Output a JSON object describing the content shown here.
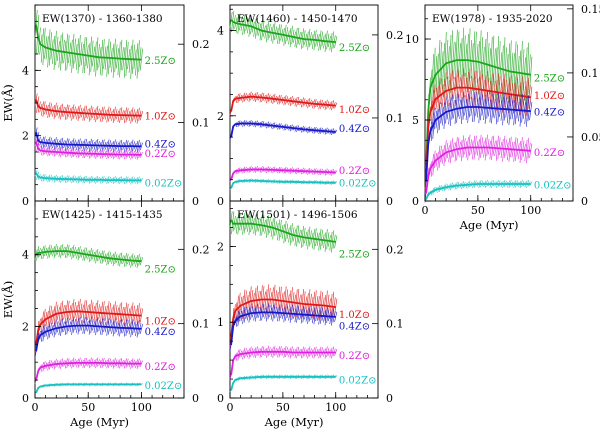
{
  "colors": {
    "2.5Z": "#1aa51a",
    "1.0Z": "#e01818",
    "0.4Z": "#1818c8",
    "0.2Z": "#e020e0",
    "0.02Z": "#18c0c0"
  },
  "axis_labels": {
    "ylabel": "EW(Å)",
    "xlabel": "Age (Myr)"
  },
  "chart_data": [
    {
      "id": "p1370",
      "type": "line",
      "title": "EW(1370) - 1360-1380",
      "xlim": [
        0,
        140
      ],
      "ylim": [
        0,
        6
      ],
      "right_ylim": [
        0,
        0.25
      ],
      "x_ticks": [
        0,
        50,
        100
      ],
      "y_ticks": [
        0,
        2,
        4
      ],
      "right_ticks": [
        0,
        0.1,
        0.2
      ],
      "right_tick_labels": [
        "0",
        "0.1",
        "0.2"
      ],
      "series": [
        {
          "name": "2.5Z⊙",
          "key": "2.5Z",
          "x": [
            1,
            3,
            5,
            10,
            20,
            30,
            40,
            50,
            60,
            70,
            80,
            90,
            100
          ],
          "y": [
            5.4,
            5.0,
            4.8,
            4.7,
            4.6,
            4.55,
            4.5,
            4.45,
            4.4,
            4.38,
            4.36,
            4.34,
            4.33
          ],
          "err": 0.6,
          "label_y": 4.3
        },
        {
          "name": "1.0Z⊙",
          "key": "1.0Z",
          "x": [
            1,
            3,
            5,
            10,
            20,
            30,
            40,
            50,
            60,
            70,
            80,
            90,
            100
          ],
          "y": [
            3.1,
            2.9,
            2.85,
            2.8,
            2.75,
            2.72,
            2.7,
            2.68,
            2.66,
            2.64,
            2.63,
            2.62,
            2.61
          ],
          "err": 0.25,
          "label_y": 2.6
        },
        {
          "name": "0.4Z⊙",
          "key": "0.4Z",
          "x": [
            1,
            3,
            5,
            10,
            20,
            30,
            40,
            50,
            60,
            70,
            80,
            90,
            100
          ],
          "y": [
            2.1,
            1.85,
            1.8,
            1.78,
            1.75,
            1.73,
            1.72,
            1.71,
            1.7,
            1.69,
            1.68,
            1.68,
            1.67
          ],
          "err": 0.2,
          "label_y": 1.75
        },
        {
          "name": "0.2Z⊙",
          "key": "0.2Z",
          "x": [
            1,
            3,
            5,
            10,
            20,
            30,
            40,
            50,
            60,
            70,
            80,
            90,
            100
          ],
          "y": [
            1.8,
            1.6,
            1.55,
            1.52,
            1.5,
            1.48,
            1.46,
            1.45,
            1.44,
            1.43,
            1.42,
            1.42,
            1.41
          ],
          "err": 0.15,
          "label_y": 1.45
        },
        {
          "name": "0.02Z⊙",
          "key": "0.02Z",
          "x": [
            1,
            3,
            5,
            10,
            20,
            30,
            40,
            50,
            60,
            70,
            80,
            90,
            100
          ],
          "y": [
            0.85,
            0.75,
            0.72,
            0.7,
            0.68,
            0.67,
            0.66,
            0.65,
            0.65,
            0.64,
            0.64,
            0.63,
            0.63
          ],
          "err": 0.12,
          "label_y": 0.55
        }
      ]
    },
    {
      "id": "p1460",
      "type": "line",
      "title": "EW(1460) - 1450-1470",
      "xlim": [
        0,
        140
      ],
      "ylim": [
        0,
        4.6
      ],
      "right_ylim": [
        0,
        0.236
      ],
      "x_ticks": [
        0,
        50,
        100
      ],
      "y_ticks": [
        0,
        2,
        4
      ],
      "right_ticks": [
        0,
        0.1,
        0.2
      ],
      "right_tick_labels": [
        "0",
        "0.1",
        "0.2"
      ],
      "series": [
        {
          "name": "2.5Z⊙",
          "key": "2.5Z",
          "x": [
            1,
            3,
            5,
            10,
            20,
            30,
            40,
            50,
            60,
            70,
            80,
            90,
            100
          ],
          "y": [
            4.25,
            4.2,
            4.18,
            4.15,
            4.1,
            4.0,
            3.95,
            3.9,
            3.85,
            3.8,
            3.78,
            3.75,
            3.73
          ],
          "err": 0.25,
          "label_y": 3.6
        },
        {
          "name": "1.0Z⊙",
          "key": "1.0Z",
          "x": [
            1,
            3,
            5,
            10,
            20,
            30,
            40,
            50,
            60,
            70,
            80,
            90,
            100
          ],
          "y": [
            2.1,
            2.35,
            2.4,
            2.42,
            2.45,
            2.43,
            2.4,
            2.37,
            2.34,
            2.31,
            2.28,
            2.26,
            2.24
          ],
          "err": 0.12,
          "label_y": 2.15
        },
        {
          "name": "0.4Z⊙",
          "key": "0.4Z",
          "x": [
            1,
            3,
            5,
            10,
            20,
            30,
            40,
            50,
            60,
            70,
            80,
            90,
            100
          ],
          "y": [
            1.5,
            1.75,
            1.8,
            1.82,
            1.82,
            1.8,
            1.77,
            1.74,
            1.71,
            1.68,
            1.66,
            1.64,
            1.62
          ],
          "err": 0.08,
          "label_y": 1.7
        },
        {
          "name": "0.2Z⊙",
          "key": "0.2Z",
          "x": [
            1,
            3,
            5,
            10,
            20,
            30,
            40,
            50,
            60,
            70,
            80,
            90,
            100
          ],
          "y": [
            0.5,
            0.65,
            0.7,
            0.72,
            0.74,
            0.74,
            0.73,
            0.72,
            0.71,
            0.7,
            0.69,
            0.68,
            0.67
          ],
          "err": 0.08,
          "label_y": 0.72
        },
        {
          "name": "0.02Z⊙",
          "key": "0.02Z",
          "x": [
            1,
            3,
            5,
            10,
            20,
            30,
            40,
            50,
            60,
            70,
            80,
            90,
            100
          ],
          "y": [
            0.3,
            0.42,
            0.45,
            0.47,
            0.48,
            0.47,
            0.46,
            0.45,
            0.45,
            0.44,
            0.44,
            0.43,
            0.43
          ],
          "err": 0.05,
          "label_y": 0.42
        }
      ]
    },
    {
      "id": "p1978",
      "type": "line",
      "title": "EW(1978) - 1935-2020",
      "xlim": [
        0,
        140
      ],
      "ylim": [
        0,
        12.1
      ],
      "right_ylim": [
        0,
        0.153
      ],
      "x_ticks": [
        0,
        50,
        100
      ],
      "y_ticks": [
        0,
        5,
        10
      ],
      "right_ticks": [
        0,
        0.05,
        0.1,
        0.15
      ],
      "right_tick_labels": [
        "0",
        "0.05",
        "0.1",
        "0.15"
      ],
      "series": [
        {
          "name": "2.5Z⊙",
          "key": "2.5Z",
          "x": [
            1,
            3,
            5,
            10,
            20,
            30,
            40,
            50,
            60,
            70,
            80,
            90,
            100
          ],
          "y": [
            2.0,
            5.5,
            7.0,
            7.8,
            8.5,
            8.7,
            8.7,
            8.6,
            8.4,
            8.2,
            8.0,
            7.9,
            7.8
          ],
          "err": 2.0,
          "label_y": 7.6
        },
        {
          "name": "1.0Z⊙",
          "key": "1.0Z",
          "x": [
            1,
            3,
            5,
            10,
            20,
            30,
            40,
            50,
            60,
            70,
            80,
            90,
            100
          ],
          "y": [
            1.5,
            4.5,
            5.5,
            6.3,
            6.8,
            7.0,
            7.0,
            6.9,
            6.8,
            6.7,
            6.6,
            6.5,
            6.4
          ],
          "err": 1.2,
          "label_y": 6.5
        },
        {
          "name": "0.4Z⊙",
          "key": "0.4Z",
          "x": [
            1,
            3,
            5,
            10,
            20,
            30,
            40,
            50,
            60,
            70,
            80,
            90,
            100
          ],
          "y": [
            1.2,
            3.5,
            4.3,
            5.0,
            5.5,
            5.7,
            5.8,
            5.8,
            5.75,
            5.7,
            5.65,
            5.6,
            5.55
          ],
          "err": 1.0,
          "label_y": 5.5
        },
        {
          "name": "0.2Z⊙",
          "key": "0.2Z",
          "x": [
            1,
            3,
            5,
            10,
            20,
            30,
            40,
            50,
            60,
            70,
            80,
            90,
            100
          ],
          "y": [
            0.5,
            1.5,
            2.0,
            2.5,
            3.0,
            3.2,
            3.3,
            3.3,
            3.3,
            3.25,
            3.2,
            3.15,
            3.1
          ],
          "err": 0.8,
          "label_y": 3.0
        },
        {
          "name": "0.02Z⊙",
          "key": "0.02Z",
          "x": [
            1,
            3,
            5,
            10,
            20,
            30,
            40,
            50,
            60,
            70,
            80,
            90,
            100
          ],
          "y": [
            0.1,
            0.4,
            0.5,
            0.7,
            0.85,
            0.95,
            1.0,
            1.05,
            1.05,
            1.05,
            1.05,
            1.05,
            1.05
          ],
          "err": 0.25,
          "label_y": 1.0
        }
      ]
    },
    {
      "id": "p1425",
      "type": "line",
      "title": "EW(1425) - 1415-1435",
      "xlim": [
        0,
        140
      ],
      "ylim": [
        0,
        5.5
      ],
      "right_ylim": [
        0,
        0.265
      ],
      "x_ticks": [
        0,
        50,
        100
      ],
      "y_ticks": [
        0,
        2,
        4
      ],
      "right_ticks": [
        0,
        0.1,
        0.2
      ],
      "right_tick_labels": [
        "0",
        "0.1",
        "0.2"
      ],
      "series": [
        {
          "name": "2.5Z⊙",
          "key": "2.5Z",
          "x": [
            1,
            3,
            5,
            10,
            20,
            30,
            40,
            50,
            60,
            70,
            80,
            90,
            100
          ],
          "y": [
            4.0,
            4.05,
            4.05,
            4.08,
            4.1,
            4.1,
            4.05,
            4.0,
            3.95,
            3.9,
            3.87,
            3.84,
            3.82
          ],
          "err": 0.2,
          "label_y": 3.6
        },
        {
          "name": "1.0Z⊙",
          "key": "1.0Z",
          "x": [
            1,
            3,
            5,
            10,
            20,
            30,
            40,
            50,
            60,
            70,
            80,
            90,
            100
          ],
          "y": [
            1.5,
            1.9,
            2.05,
            2.2,
            2.35,
            2.4,
            2.42,
            2.4,
            2.38,
            2.36,
            2.34,
            2.32,
            2.3
          ],
          "err": 0.35,
          "label_y": 2.15
        },
        {
          "name": "0.4Z⊙",
          "key": "0.4Z",
          "x": [
            1,
            3,
            5,
            10,
            20,
            30,
            40,
            50,
            60,
            70,
            80,
            90,
            100
          ],
          "y": [
            1.3,
            1.65,
            1.75,
            1.85,
            1.95,
            2.0,
            2.02,
            2.02,
            2.0,
            1.98,
            1.96,
            1.95,
            1.93
          ],
          "err": 0.25,
          "label_y": 1.85
        },
        {
          "name": "0.2Z⊙",
          "key": "0.2Z",
          "x": [
            1,
            3,
            5,
            10,
            20,
            30,
            40,
            50,
            60,
            70,
            80,
            90,
            100
          ],
          "y": [
            0.5,
            0.75,
            0.85,
            0.9,
            0.95,
            0.97,
            0.98,
            0.98,
            0.98,
            0.97,
            0.97,
            0.96,
            0.96
          ],
          "err": 0.15,
          "label_y": 0.88
        },
        {
          "name": "0.02Z⊙",
          "key": "0.02Z",
          "x": [
            1,
            3,
            5,
            10,
            20,
            30,
            40,
            50,
            60,
            70,
            80,
            90,
            100
          ],
          "y": [
            0.15,
            0.28,
            0.32,
            0.35,
            0.37,
            0.38,
            0.38,
            0.38,
            0.38,
            0.38,
            0.38,
            0.38,
            0.38
          ],
          "err": 0.05,
          "label_y": 0.35
        }
      ]
    },
    {
      "id": "p1501",
      "type": "line",
      "title": "EW(1501) - 1496-1506",
      "xlim": [
        0,
        140
      ],
      "ylim": [
        0,
        2.6
      ],
      "right_ylim": [
        0,
        0.265
      ],
      "x_ticks": [
        0,
        50,
        100
      ],
      "y_ticks": [
        0,
        1,
        2
      ],
      "right_ticks": [
        0,
        0.1,
        0.2
      ],
      "right_tick_labels": [
        "0",
        "0.1",
        "0.2"
      ],
      "series": [
        {
          "name": "2.5Z⊙",
          "key": "2.5Z",
          "x": [
            1,
            3,
            5,
            10,
            20,
            30,
            40,
            50,
            60,
            70,
            80,
            90,
            100
          ],
          "y": [
            2.35,
            2.3,
            2.3,
            2.3,
            2.3,
            2.28,
            2.25,
            2.2,
            2.15,
            2.12,
            2.1,
            2.08,
            2.06
          ],
          "err": 0.15,
          "label_y": 1.9
        },
        {
          "name": "1.0Z⊙",
          "key": "1.0Z",
          "x": [
            1,
            3,
            5,
            10,
            20,
            30,
            40,
            50,
            60,
            70,
            80,
            90,
            100
          ],
          "y": [
            0.8,
            1.05,
            1.15,
            1.22,
            1.28,
            1.3,
            1.3,
            1.28,
            1.26,
            1.24,
            1.23,
            1.22,
            1.2
          ],
          "err": 0.2,
          "label_y": 1.1
        },
        {
          "name": "0.4Z⊙",
          "key": "0.4Z",
          "x": [
            1,
            3,
            5,
            10,
            20,
            30,
            40,
            50,
            60,
            70,
            80,
            90,
            100
          ],
          "y": [
            0.7,
            0.95,
            1.02,
            1.08,
            1.12,
            1.13,
            1.13,
            1.12,
            1.11,
            1.1,
            1.09,
            1.08,
            1.07
          ],
          "err": 0.12,
          "label_y": 0.95
        },
        {
          "name": "0.2Z⊙",
          "key": "0.2Z",
          "x": [
            1,
            3,
            5,
            10,
            20,
            30,
            40,
            50,
            60,
            70,
            80,
            90,
            100
          ],
          "y": [
            0.3,
            0.5,
            0.55,
            0.58,
            0.6,
            0.61,
            0.61,
            0.61,
            0.6,
            0.6,
            0.6,
            0.6,
            0.6
          ],
          "err": 0.08,
          "label_y": 0.56
        },
        {
          "name": "0.02Z⊙",
          "key": "0.02Z",
          "x": [
            1,
            3,
            5,
            10,
            20,
            30,
            40,
            50,
            60,
            70,
            80,
            90,
            100
          ],
          "y": [
            0.1,
            0.2,
            0.24,
            0.26,
            0.27,
            0.28,
            0.28,
            0.28,
            0.28,
            0.28,
            0.28,
            0.28,
            0.28
          ],
          "err": 0.03,
          "label_y": 0.24
        }
      ]
    }
  ]
}
